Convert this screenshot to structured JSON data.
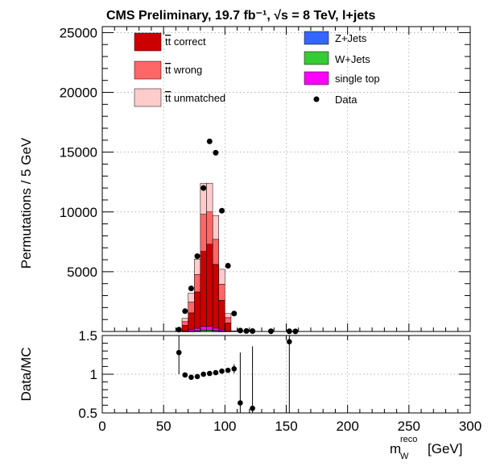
{
  "chart_data": {
    "type": "histogram_stack_ratio",
    "title": "CMS Preliminary, 19.7 fb⁻¹,  √s = 8 TeV, l+jets",
    "xlabel": "m_W^reco [GeV]",
    "xlabel_main": "m",
    "xlabel_sup": "reco",
    "xlabel_sub": "W",
    "xlabel_unit": "[GeV]",
    "ylabel": "Permutations / 5 GeV",
    "ratio_ylabel": "Data/MC",
    "xlim": [
      0,
      300
    ],
    "ylim": [
      0,
      25500
    ],
    "ratio_ylim": [
      0.5,
      1.5
    ],
    "bin_width": 5,
    "x_ticks": [
      "0",
      "50",
      "100",
      "150",
      "200",
      "250",
      "300"
    ],
    "y_ticks": [
      "5000",
      "10000",
      "15000",
      "20000",
      "25000"
    ],
    "ratio_ticks": [
      "0.5",
      "1",
      "1.5"
    ],
    "bins": [
      60,
      65,
      70,
      75,
      80,
      85,
      90,
      95,
      100,
      105
    ],
    "series": [
      {
        "name": "t̄t correct",
        "label_tt": "tt",
        "label_rest": " correct",
        "color": "#cc0000",
        "values": [
          0,
          500,
          1550,
          3300,
          6700,
          7300,
          5600,
          2600,
          700,
          30
        ]
      },
      {
        "name": "t̄t wrong",
        "label_tt": "tt",
        "label_rest": " wrong",
        "color": "#ff6666",
        "values": [
          0,
          320,
          900,
          1450,
          3100,
          2700,
          2100,
          1350,
          450,
          15
        ]
      },
      {
        "name": "t̄t unmatched",
        "label_tt": "tt",
        "label_rest": " unmatched",
        "color": "#ffcccc",
        "values": [
          0,
          280,
          750,
          1300,
          2600,
          2400,
          2000,
          1250,
          350,
          5
        ]
      },
      {
        "name": "Z+Jets",
        "label_tt": "",
        "label_rest": "Z+Jets",
        "color": "#3366ff",
        "values": [
          0,
          0,
          5,
          10,
          15,
          15,
          10,
          5,
          0,
          0
        ]
      },
      {
        "name": "W+Jets",
        "label_tt": "",
        "label_rest": "W+Jets",
        "color": "#33cc33",
        "values": [
          0,
          5,
          20,
          50,
          100,
          100,
          60,
          40,
          10,
          0
        ]
      },
      {
        "name": "single top",
        "label_tt": "",
        "label_rest": "single top",
        "color": "#ff00ff",
        "values": [
          0,
          40,
          120,
          200,
          300,
          300,
          200,
          100,
          30,
          0
        ]
      }
    ],
    "data_points": {
      "name": "Data",
      "x": [
        62.5,
        67.5,
        72.5,
        77.5,
        82.5,
        87.5,
        92.5,
        97.5,
        102.5,
        107.5,
        112.5,
        117.5,
        122.5,
        137.5,
        152.5,
        157.5
      ],
      "y": [
        150,
        1700,
        3600,
        6300,
        12000,
        15900,
        14950,
        10100,
        5500,
        1500,
        80,
        40,
        30,
        20,
        15,
        10
      ]
    },
    "ratio_points": {
      "x": [
        62.5,
        67.5,
        72.5,
        77.5,
        82.5,
        87.5,
        92.5,
        97.5,
        102.5,
        107.5,
        112.5,
        122.5,
        152.5
      ],
      "y": [
        1.28,
        0.99,
        0.96,
        0.97,
        1.0,
        1.01,
        1.02,
        1.04,
        1.05,
        1.07,
        0.63,
        0.56,
        1.42
      ],
      "err": [
        0.28,
        0.02,
        0.01,
        0.01,
        0.01,
        0.01,
        0.01,
        0.01,
        0.01,
        0.06,
        0.65,
        0.8,
        1.4
      ]
    }
  }
}
